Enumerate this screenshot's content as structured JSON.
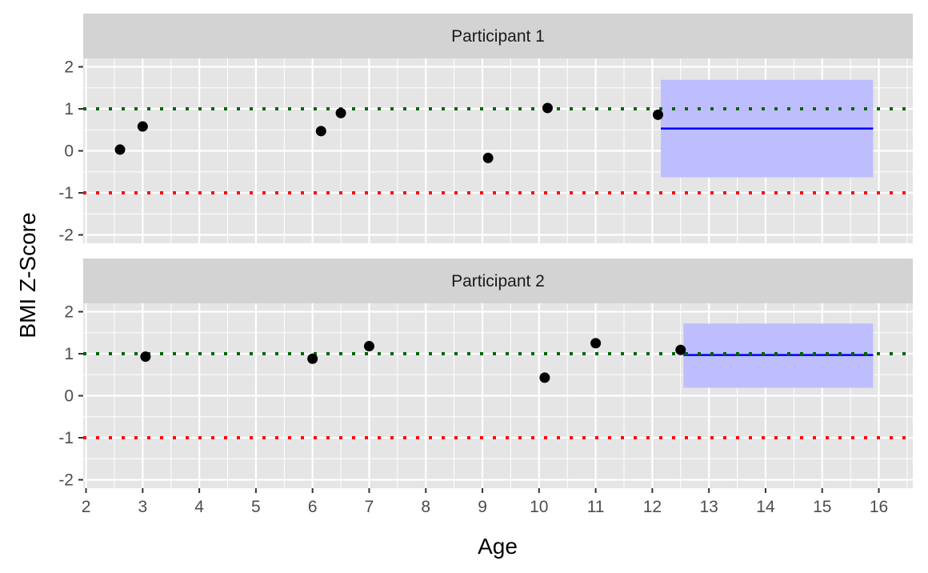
{
  "chart_data": {
    "type": "scatter",
    "xlabel": "Age",
    "ylabel": "BMI Z-Score",
    "xlim": [
      1.95,
      16.6
    ],
    "ylim": [
      -2.2,
      2.2
    ],
    "x_ticks": [
      2,
      3,
      4,
      5,
      6,
      7,
      8,
      9,
      10,
      11,
      12,
      13,
      14,
      15,
      16
    ],
    "y_ticks": [
      -2,
      -1,
      0,
      1,
      2
    ],
    "y_tick_labels": [
      "-2",
      "-1",
      "0",
      "1",
      "2"
    ],
    "grid": true,
    "facet_layout": "stacked vertically, shared x axis",
    "reference_lines": [
      {
        "y": 1,
        "color": "#006400",
        "style": "dotted"
      },
      {
        "y": -1,
        "color": "#ff0000",
        "style": "dotted"
      }
    ],
    "colors": {
      "points": "#000000",
      "prediction_line": "#0000ff",
      "prediction_band": "#bebeff",
      "panel_background": "#e5e5e5",
      "strip_background": "#d3d3d3",
      "grid": "#ffffff"
    },
    "panels": [
      {
        "label": "Participant 1",
        "points": [
          {
            "x": 2.6,
            "y": 0.03
          },
          {
            "x": 3.0,
            "y": 0.58
          },
          {
            "x": 6.15,
            "y": 0.47
          },
          {
            "x": 6.5,
            "y": 0.9
          },
          {
            "x": 9.1,
            "y": -0.17
          },
          {
            "x": 10.15,
            "y": 1.02
          },
          {
            "x": 12.1,
            "y": 0.86
          }
        ],
        "prediction": {
          "x_start": 12.15,
          "x_end": 15.9,
          "y": 0.53,
          "lower": -0.63,
          "upper": 1.69
        }
      },
      {
        "label": "Participant 2",
        "points": [
          {
            "x": 3.05,
            "y": 0.93
          },
          {
            "x": 6.0,
            "y": 0.88
          },
          {
            "x": 7.0,
            "y": 1.18
          },
          {
            "x": 10.1,
            "y": 0.43
          },
          {
            "x": 11.0,
            "y": 1.25
          },
          {
            "x": 12.5,
            "y": 1.09
          }
        ],
        "prediction": {
          "x_start": 12.55,
          "x_end": 15.9,
          "y": 0.97,
          "lower": 0.19,
          "upper": 1.72
        }
      }
    ]
  }
}
